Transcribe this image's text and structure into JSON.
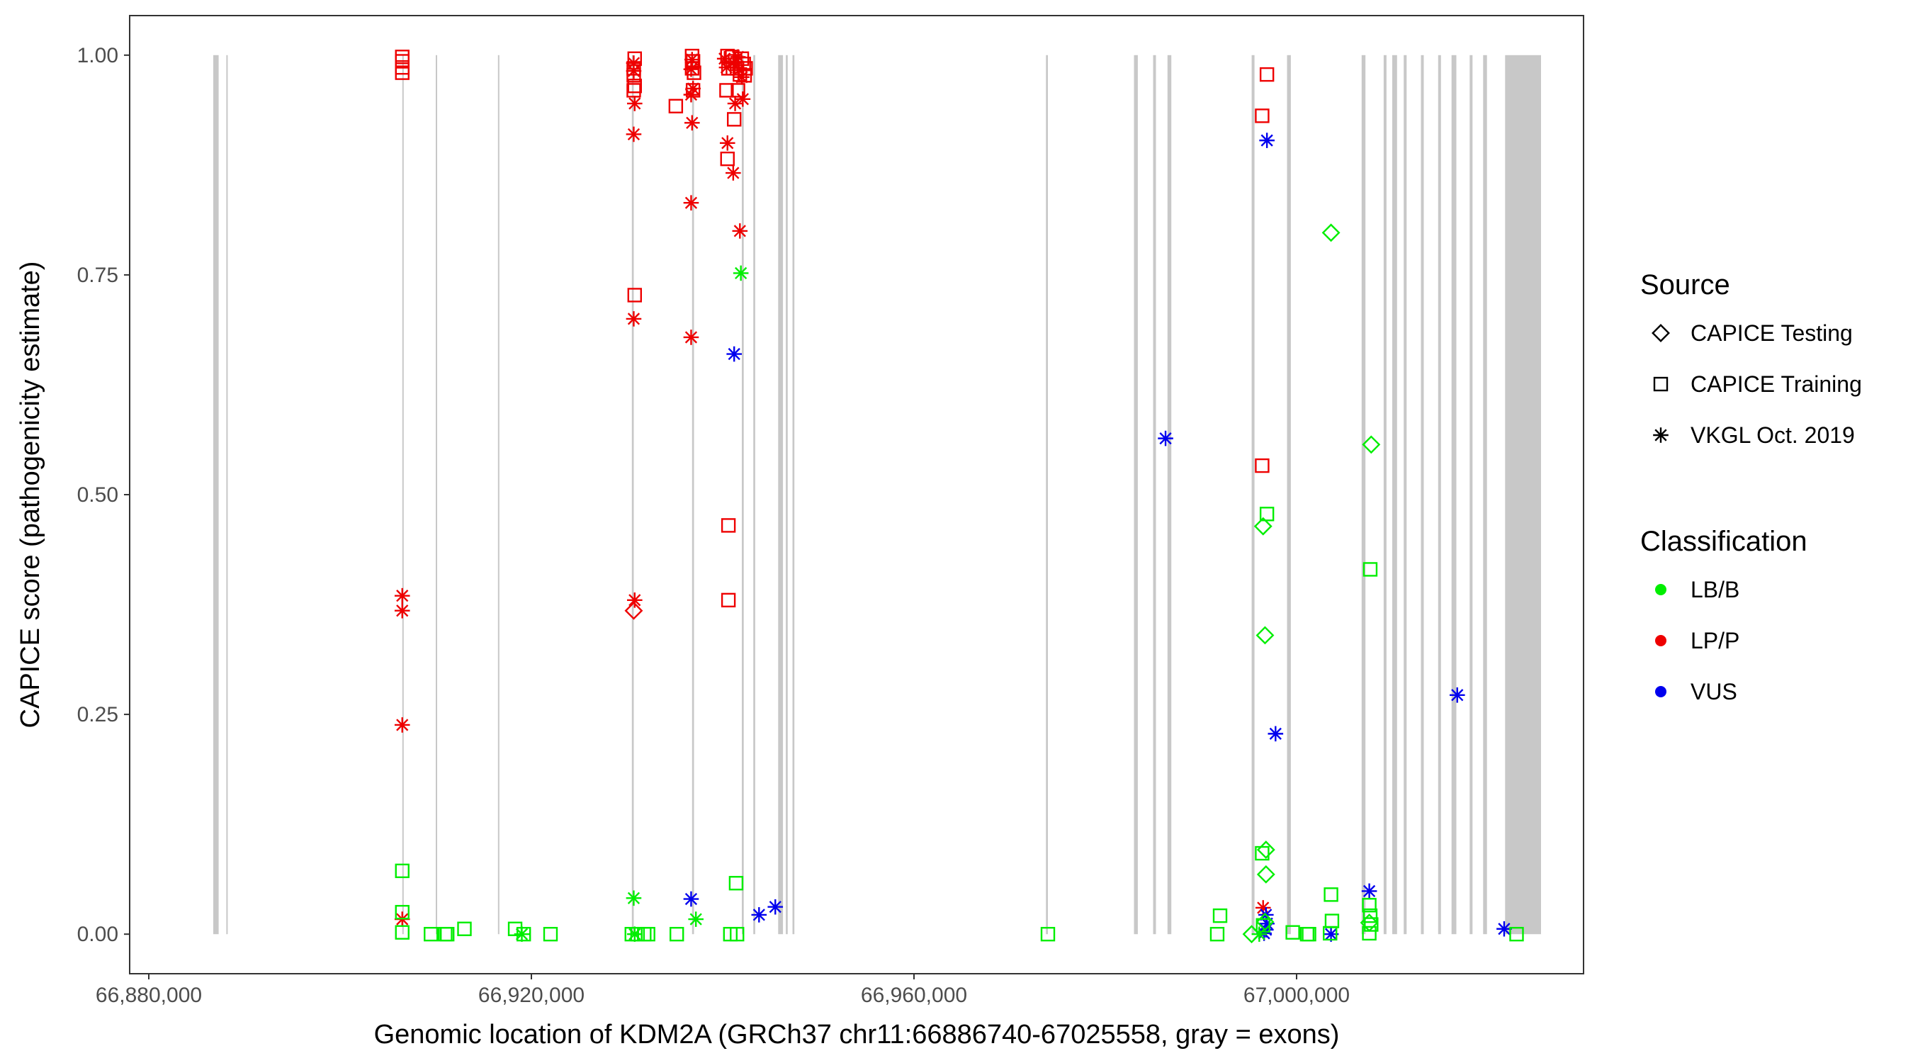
{
  "chart_data": {
    "type": "scatter",
    "title": "",
    "xlabel": "Genomic location of KDM2A (GRCh37 chr11:66886740-67025558, gray = exons)",
    "ylabel": "CAPICE score (pathogenicity estimate)",
    "xlim": [
      66878000,
      67030000
    ],
    "ylim": [
      -0.045,
      1.045
    ],
    "x_ticks": [
      66880000,
      66920000,
      66960000,
      67000000
    ],
    "x_tick_labels": [
      "66,880,000",
      "66,920,000",
      "66,960,000",
      "67,000,000"
    ],
    "y_ticks": [
      0,
      0.25,
      0.5,
      0.75,
      1.0
    ],
    "y_tick_labels": [
      "0.00",
      "0.25",
      "0.50",
      "0.75",
      "1.00"
    ],
    "grid": false,
    "exons": [
      [
        66886740,
        66887300
      ],
      [
        66888100,
        66888250
      ],
      [
        66906500,
        66906650
      ],
      [
        66910000,
        66910150
      ],
      [
        66916500,
        66916650
      ],
      [
        66930500,
        66930700
      ],
      [
        66936800,
        66937000
      ],
      [
        66942000,
        66942200
      ],
      [
        66943200,
        66943400
      ],
      [
        66945800,
        66946300
      ],
      [
        66946600,
        66946800
      ],
      [
        66947300,
        66947500
      ],
      [
        66973800,
        66974000
      ],
      [
        66983000,
        66983400
      ],
      [
        66985000,
        66985300
      ],
      [
        66986500,
        66986900
      ],
      [
        66995300,
        66995600
      ],
      [
        66999000,
        66999400
      ],
      [
        67006800,
        67007200
      ],
      [
        67009100,
        67009400
      ],
      [
        67010000,
        67010500
      ],
      [
        67011200,
        67011500
      ],
      [
        67013000,
        67013300
      ],
      [
        67014800,
        67015100
      ],
      [
        67016200,
        67016700
      ],
      [
        67018100,
        67018400
      ],
      [
        67019500,
        67019900
      ],
      [
        67021800,
        67025558
      ]
    ],
    "legend": {
      "position": "right",
      "source_title": "Source",
      "source_items": [
        {
          "label": "CAPICE Testing",
          "shape": "diamond"
        },
        {
          "label": "CAPICE Training",
          "shape": "square"
        },
        {
          "label": "VKGL Oct. 2019",
          "shape": "asterisk"
        }
      ],
      "class_title": "Classification",
      "class_items": [
        {
          "label": "LB/B",
          "color": "#00ee00"
        },
        {
          "label": "LP/P",
          "color": "#ee0000"
        },
        {
          "label": "VUS",
          "color": "#0000ee"
        }
      ]
    },
    "colors": {
      "LB/B": "#00ee00",
      "LP/P": "#ee0000",
      "VUS": "#0000ee",
      "exon": "#c8c8c8"
    },
    "series": [
      {
        "source": "CAPICE Training",
        "classification": "LP/P",
        "points": [
          [
            66906500,
            0.998
          ],
          [
            66906500,
            0.993
          ],
          [
            66906500,
            0.986
          ],
          [
            66906500,
            0.98
          ],
          [
            66930800,
            0.996
          ],
          [
            66930700,
            0.985
          ],
          [
            66930700,
            0.977
          ],
          [
            66930800,
            0.965
          ],
          [
            66930700,
            0.96
          ],
          [
            66930800,
            0.727
          ],
          [
            66935100,
            0.942
          ],
          [
            66936800,
            0.999
          ],
          [
            66936900,
            0.993
          ],
          [
            66936800,
            0.985
          ],
          [
            66937000,
            0.98
          ],
          [
            66936900,
            0.96
          ],
          [
            66940500,
            0.999
          ],
          [
            66940600,
            0.985
          ],
          [
            66940400,
            0.96
          ],
          [
            66940500,
            0.882
          ],
          [
            66940600,
            0.465
          ],
          [
            66940600,
            0.38
          ],
          [
            66941000,
            0.998
          ],
          [
            66941300,
            0.993
          ],
          [
            66941500,
            0.985
          ],
          [
            66941800,
            0.978
          ],
          [
            66941600,
            0.96
          ],
          [
            66941200,
            0.927
          ],
          [
            66942000,
            0.996
          ],
          [
            66942200,
            0.99
          ],
          [
            66942400,
            0.985
          ],
          [
            66942300,
            0.977
          ],
          [
            66996400,
            0.931
          ],
          [
            66996900,
            0.978
          ],
          [
            66996400,
            0.533
          ]
        ]
      },
      {
        "source": "VKGL Oct. 2019",
        "classification": "LP/P",
        "points": [
          [
            66906500,
            0.385
          ],
          [
            66906500,
            0.368
          ],
          [
            66906500,
            0.238
          ],
          [
            66906500,
            0.017
          ],
          [
            66930700,
            0.991
          ],
          [
            66930700,
            0.982
          ],
          [
            66930800,
            0.945
          ],
          [
            66930700,
            0.91
          ],
          [
            66930700,
            0.7
          ],
          [
            66930800,
            0.38
          ],
          [
            66936800,
            0.995
          ],
          [
            66936700,
            0.984
          ],
          [
            66936900,
            0.962
          ],
          [
            66936700,
            0.955
          ],
          [
            66936800,
            0.923
          ],
          [
            66936700,
            0.832
          ],
          [
            66936700,
            0.679
          ],
          [
            66940200,
            0.996
          ],
          [
            66940400,
            0.986
          ],
          [
            66940500,
            0.9
          ],
          [
            66941100,
            0.991
          ],
          [
            66941300,
            0.945
          ],
          [
            66941100,
            0.866
          ],
          [
            66941600,
            0.998
          ],
          [
            66941700,
            0.983
          ],
          [
            66942000,
            0.975
          ],
          [
            66942100,
            0.95
          ],
          [
            66941800,
            0.8
          ],
          [
            66996500,
            0.03
          ]
        ]
      },
      {
        "source": "CAPICE Testing",
        "classification": "LP/P",
        "points": [
          [
            66930700,
            0.368
          ]
        ]
      },
      {
        "source": "VKGL Oct. 2019",
        "classification": "VUS",
        "points": [
          [
            66941200,
            0.66
          ],
          [
            66936700,
            0.04
          ],
          [
            66943800,
            0.022
          ],
          [
            66945500,
            0.031
          ],
          [
            66986300,
            0.564
          ],
          [
            66996900,
            0.903
          ],
          [
            66997800,
            0.228
          ],
          [
            67016800,
            0.272
          ],
          [
            66996800,
            0.022
          ],
          [
            66996900,
            0.012
          ],
          [
            66996800,
            0.005
          ],
          [
            66996600,
            0.001
          ],
          [
            67003600,
            0.0
          ],
          [
            67007600,
            0.049
          ],
          [
            67021700,
            0.006
          ]
        ]
      },
      {
        "source": "VKGL Oct. 2019",
        "classification": "LB/B",
        "points": [
          [
            66941900,
            0.752
          ],
          [
            66930700,
            0.041
          ],
          [
            66937200,
            0.017
          ],
          [
            66930800,
            0.0
          ],
          [
            66919000,
            0.0
          ],
          [
            66996100,
            0.0
          ]
        ]
      },
      {
        "source": "CAPICE Training",
        "classification": "LB/B",
        "points": [
          [
            66906500,
            0.072
          ],
          [
            66906500,
            0.025
          ],
          [
            66906500,
            0.002
          ],
          [
            66909500,
            0.0
          ],
          [
            66911000,
            0.0
          ],
          [
            66911200,
            0.0
          ],
          [
            66913000,
            0.006
          ],
          [
            66918300,
            0.006
          ],
          [
            66919200,
            0.0
          ],
          [
            66922000,
            0.0
          ],
          [
            66930500,
            0.0
          ],
          [
            66931100,
            0.0
          ],
          [
            66931800,
            0.0
          ],
          [
            66932200,
            0.0
          ],
          [
            66935200,
            0.0
          ],
          [
            66940800,
            0.0
          ],
          [
            66941500,
            0.0
          ],
          [
            66941400,
            0.058
          ],
          [
            66974000,
            0.0
          ],
          [
            66991700,
            0.0
          ],
          [
            66992000,
            0.021
          ],
          [
            66996400,
            0.092
          ],
          [
            66996900,
            0.478
          ],
          [
            66996500,
            0.01
          ],
          [
            66999600,
            0.002
          ],
          [
            67001100,
            0.0
          ],
          [
            67001300,
            0.0
          ],
          [
            67003600,
            0.045
          ],
          [
            67003700,
            0.015
          ],
          [
            67003500,
            0.001
          ],
          [
            67007700,
            0.415
          ],
          [
            67007600,
            0.033
          ],
          [
            67007700,
            0.021
          ],
          [
            67007800,
            0.011
          ],
          [
            67007600,
            0.001
          ],
          [
            67023000,
            0.0
          ]
        ]
      },
      {
        "source": "CAPICE Testing",
        "classification": "LB/B",
        "points": [
          [
            67003600,
            0.798
          ],
          [
            67007800,
            0.557
          ],
          [
            66996500,
            0.464
          ],
          [
            66996700,
            0.34
          ],
          [
            66996800,
            0.096
          ],
          [
            66996800,
            0.068
          ],
          [
            66996700,
            0.014
          ],
          [
            66995300,
            0.0
          ],
          [
            67007600,
            0.013
          ]
        ]
      }
    ]
  }
}
